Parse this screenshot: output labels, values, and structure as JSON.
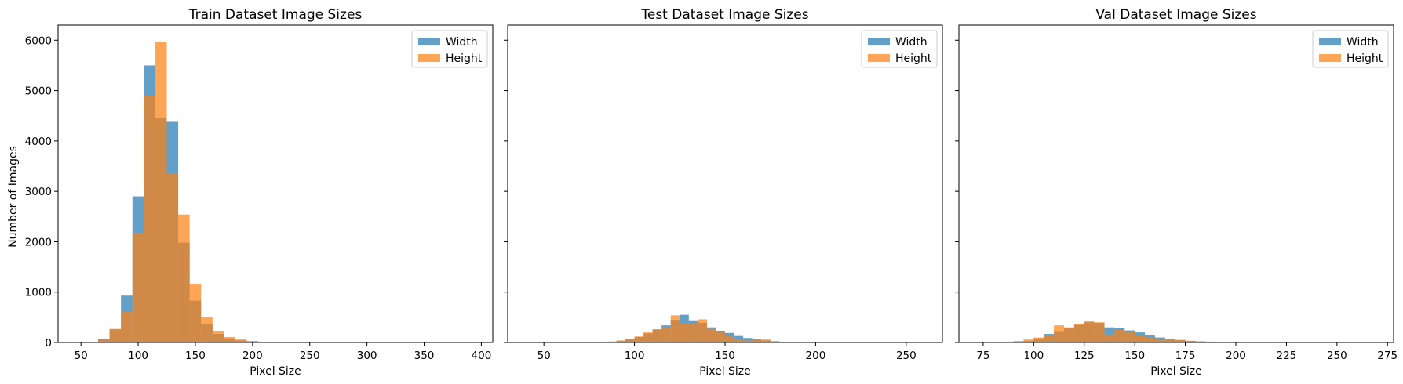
{
  "colors": {
    "width": "#1f77b4",
    "height": "#ff7f0e",
    "bar_alpha": 0.7
  },
  "shared_ylabel": "Number of Images",
  "chart_data": [
    {
      "type": "histogram",
      "title": "Train Dataset Image Sizes",
      "xlabel": "Pixel Size",
      "ylabel": "Number of Images",
      "xlim": [
        30,
        410
      ],
      "ylim": [
        0,
        6300
      ],
      "xticks": [
        50,
        100,
        150,
        200,
        250,
        300,
        350,
        400
      ],
      "yticks": [
        0,
        1000,
        2000,
        3000,
        4000,
        5000,
        6000
      ],
      "legend": {
        "position": "top-right",
        "entries": [
          "Width",
          "Height"
        ]
      },
      "series": [
        {
          "name": "Width",
          "bins": [
            [
              45,
              55,
              3
            ],
            [
              55,
              65,
              5
            ],
            [
              65,
              75,
              70
            ],
            [
              75,
              85,
              260
            ],
            [
              85,
              95,
              930
            ],
            [
              95,
              105,
              2900
            ],
            [
              105,
              115,
              5500
            ],
            [
              115,
              125,
              4450
            ],
            [
              125,
              135,
              4380
            ],
            [
              135,
              145,
              1980
            ],
            [
              145,
              155,
              830
            ],
            [
              155,
              165,
              360
            ],
            [
              165,
              175,
              170
            ],
            [
              175,
              185,
              80
            ],
            [
              185,
              195,
              40
            ],
            [
              195,
              205,
              20
            ],
            [
              205,
              215,
              10
            ],
            [
              215,
              225,
              5
            ],
            [
              225,
              235,
              3
            ],
            [
              235,
              245,
              2
            ],
            [
              245,
              255,
              1
            ]
          ]
        },
        {
          "name": "Height",
          "bins": [
            [
              45,
              55,
              2
            ],
            [
              55,
              65,
              10
            ],
            [
              65,
              75,
              60
            ],
            [
              75,
              85,
              270
            ],
            [
              85,
              95,
              620
            ],
            [
              95,
              105,
              2180
            ],
            [
              105,
              115,
              4890
            ],
            [
              115,
              125,
              5970
            ],
            [
              125,
              135,
              3360
            ],
            [
              135,
              145,
              2540
            ],
            [
              145,
              155,
              1150
            ],
            [
              155,
              165,
              500
            ],
            [
              165,
              175,
              230
            ],
            [
              175,
              185,
              110
            ],
            [
              185,
              195,
              60
            ],
            [
              195,
              205,
              30
            ],
            [
              205,
              215,
              15
            ],
            [
              215,
              225,
              8
            ],
            [
              225,
              235,
              4
            ],
            [
              235,
              245,
              2
            ]
          ]
        }
      ]
    },
    {
      "type": "histogram",
      "title": "Test Dataset Image Sizes",
      "xlabel": "Pixel Size",
      "xlim": [
        30,
        270
      ],
      "ylim": [
        0,
        6300
      ],
      "xticks": [
        50,
        100,
        150,
        200,
        250
      ],
      "legend": {
        "position": "top-right",
        "entries": [
          "Width",
          "Height"
        ]
      },
      "series": [
        {
          "name": "Width",
          "bins": [
            [
              70,
              75,
              2
            ],
            [
              75,
              80,
              3
            ],
            [
              80,
              85,
              6
            ],
            [
              85,
              90,
              15
            ],
            [
              90,
              95,
              30
            ],
            [
              95,
              100,
              60
            ],
            [
              100,
              105,
              110
            ],
            [
              105,
              110,
              180
            ],
            [
              110,
              115,
              260
            ],
            [
              115,
              120,
              340
            ],
            [
              120,
              125,
              450
            ],
            [
              125,
              130,
              550
            ],
            [
              130,
              135,
              440
            ],
            [
              135,
              140,
              390
            ],
            [
              140,
              145,
              300
            ],
            [
              145,
              150,
              230
            ],
            [
              150,
              155,
              190
            ],
            [
              155,
              160,
              130
            ],
            [
              160,
              165,
              90
            ],
            [
              165,
              170,
              60
            ],
            [
              170,
              175,
              40
            ],
            [
              175,
              180,
              25
            ],
            [
              180,
              185,
              15
            ],
            [
              185,
              190,
              10
            ],
            [
              190,
              195,
              6
            ],
            [
              195,
              200,
              4
            ],
            [
              200,
              205,
              3
            ],
            [
              205,
              210,
              2
            ],
            [
              215,
              220,
              2
            ],
            [
              220,
              225,
              1
            ]
          ]
        },
        {
          "name": "Height",
          "bins": [
            [
              70,
              75,
              1
            ],
            [
              75,
              80,
              3
            ],
            [
              80,
              85,
              8
            ],
            [
              85,
              90,
              20
            ],
            [
              90,
              95,
              40
            ],
            [
              95,
              100,
              70
            ],
            [
              100,
              105,
              120
            ],
            [
              105,
              110,
              200
            ],
            [
              110,
              115,
              260
            ],
            [
              115,
              120,
              310
            ],
            [
              120,
              125,
              540
            ],
            [
              125,
              130,
              380
            ],
            [
              130,
              135,
              360
            ],
            [
              135,
              140,
              460
            ],
            [
              140,
              145,
              270
            ],
            [
              145,
              150,
              200
            ],
            [
              150,
              155,
              120
            ],
            [
              155,
              160,
              60
            ],
            [
              160,
              165,
              40
            ],
            [
              165,
              170,
              60
            ],
            [
              170,
              175,
              60
            ],
            [
              175,
              180,
              15
            ],
            [
              180,
              185,
              10
            ],
            [
              185,
              190,
              6
            ],
            [
              190,
              195,
              5
            ],
            [
              195,
              200,
              3
            ],
            [
              200,
              205,
              2
            ],
            [
              205,
              210,
              2
            ]
          ]
        }
      ]
    },
    {
      "type": "histogram",
      "title": "Val Dataset Image Sizes",
      "xlabel": "Pixel Size",
      "xlim": [
        63,
        278
      ],
      "ylim": [
        0,
        6300
      ],
      "xticks": [
        75,
        100,
        125,
        150,
        175,
        200,
        225,
        250,
        275
      ],
      "legend": {
        "position": "top-right",
        "entries": [
          "Width",
          "Height"
        ]
      },
      "series": [
        {
          "name": "Width",
          "bins": [
            [
              90,
              95,
              10
            ],
            [
              95,
              100,
              30
            ],
            [
              100,
              105,
              80
            ],
            [
              105,
              110,
              170
            ],
            [
              110,
              115,
              210
            ],
            [
              115,
              120,
              280
            ],
            [
              120,
              125,
              350
            ],
            [
              125,
              130,
              400
            ],
            [
              130,
              135,
              390
            ],
            [
              135,
              140,
              300
            ],
            [
              140,
              145,
              290
            ],
            [
              145,
              150,
              240
            ],
            [
              150,
              155,
              200
            ],
            [
              155,
              160,
              140
            ],
            [
              160,
              165,
              100
            ],
            [
              165,
              170,
              70
            ],
            [
              170,
              175,
              50
            ],
            [
              175,
              180,
              30
            ],
            [
              180,
              185,
              20
            ],
            [
              185,
              190,
              10
            ],
            [
              190,
              195,
              5
            ],
            [
              195,
              200,
              3
            ],
            [
              200,
              205,
              2
            ]
          ]
        },
        {
          "name": "Height",
          "bins": [
            [
              75,
              80,
              2
            ],
            [
              80,
              85,
              5
            ],
            [
              85,
              90,
              12
            ],
            [
              90,
              95,
              30
            ],
            [
              95,
              100,
              60
            ],
            [
              100,
              105,
              100
            ],
            [
              105,
              110,
              140
            ],
            [
              110,
              115,
              340
            ],
            [
              115,
              120,
              300
            ],
            [
              120,
              125,
              370
            ],
            [
              125,
              130,
              420
            ],
            [
              130,
              135,
              400
            ],
            [
              135,
              140,
              160
            ],
            [
              140,
              145,
              250
            ],
            [
              145,
              150,
              200
            ],
            [
              150,
              155,
              130
            ],
            [
              155,
              160,
              100
            ],
            [
              160,
              165,
              80
            ],
            [
              165,
              170,
              60
            ],
            [
              170,
              175,
              50
            ],
            [
              175,
              180,
              35
            ],
            [
              180,
              185,
              25
            ],
            [
              185,
              190,
              18
            ],
            [
              190,
              195,
              12
            ],
            [
              195,
              200,
              8
            ],
            [
              200,
              205,
              5
            ],
            [
              205,
              210,
              4
            ],
            [
              210,
              215,
              3
            ],
            [
              215,
              220,
              2
            ],
            [
              220,
              225,
              1
            ]
          ]
        }
      ]
    }
  ]
}
